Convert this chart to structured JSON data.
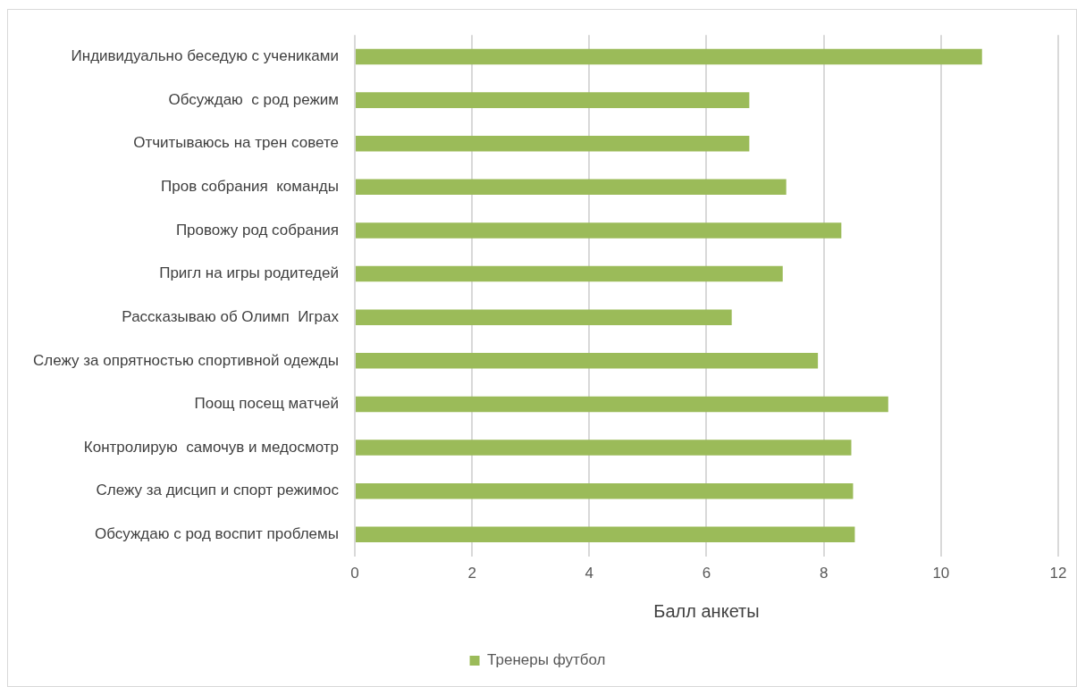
{
  "chart_data": {
    "type": "bar",
    "orientation": "horizontal",
    "xlabel": "Балл анкеты",
    "categories": [
      "Индивидуально беседую с учениками",
      "Обсуждаю  с род режим",
      "Отчитываюсь на трен совете",
      "Пров собрания  команды",
      "Провожу род собрания",
      "Пригл на игры родитедей",
      "Рассказываю об Олимп  Играх",
      "Слежу за опрятностью спортивной одежды",
      "Поощ посещ матчей",
      "Контролирую  самочув и медосмотр",
      "Слежу за дисцип и спорт режимос",
      "Обсуждаю с род воспит проблемы"
    ],
    "series": [
      {
        "name": "Тренеры футбол",
        "color": "#9bbb59",
        "values": [
          10.7,
          6.73,
          6.73,
          7.36,
          8.3,
          7.3,
          6.43,
          7.9,
          9.1,
          8.47,
          8.5,
          8.53
        ]
      }
    ],
    "xlim": [
      0,
      12
    ],
    "xticks": [
      0,
      2,
      4,
      6,
      8,
      10,
      12
    ],
    "grid": "x",
    "legend": "bottom"
  }
}
